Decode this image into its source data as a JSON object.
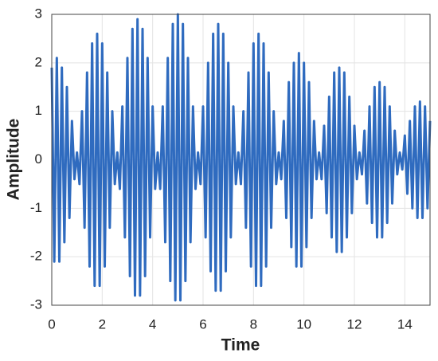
{
  "chart_data": {
    "type": "line",
    "xlabel": "Time",
    "ylabel": "Amplitude",
    "xlim": [
      0,
      15
    ],
    "ylim": [
      -3,
      3
    ],
    "xticks": [
      0,
      2,
      4,
      6,
      8,
      10,
      12,
      14
    ],
    "yticks": [
      -3,
      -2,
      -1,
      0,
      1,
      2,
      3
    ],
    "grid": true,
    "x": [
      0,
      0.1,
      0.2,
      0.3,
      0.4,
      0.5,
      0.6,
      0.7,
      0.8,
      0.9,
      1,
      1.1,
      1.2,
      1.3,
      1.4,
      1.5,
      1.6,
      1.7,
      1.8,
      1.9,
      2,
      2.1,
      2.2,
      2.3,
      2.4,
      2.5,
      2.6,
      2.7,
      2.8,
      2.9,
      3,
      3.1,
      3.2,
      3.3,
      3.4,
      3.5,
      3.6,
      3.7,
      3.8,
      3.9,
      4,
      4.1,
      4.2,
      4.3,
      4.4,
      4.5,
      4.6,
      4.7,
      4.8,
      4.9,
      5,
      5.1,
      5.2,
      5.3,
      5.4,
      5.5,
      5.6,
      5.7,
      5.8,
      5.9,
      6,
      6.1,
      6.2,
      6.3,
      6.4,
      6.5,
      6.6,
      6.7,
      6.8,
      6.9,
      7,
      7.1,
      7.2,
      7.3,
      7.4,
      7.5,
      7.6,
      7.7,
      7.8,
      7.9,
      8,
      8.1,
      8.2,
      8.3,
      8.4,
      8.5,
      8.6,
      8.7,
      8.8,
      8.9,
      9,
      9.1,
      9.2,
      9.3,
      9.4,
      9.5,
      9.6,
      9.7,
      9.8,
      9.9,
      10,
      10.1,
      10.2,
      10.3,
      10.4,
      10.5,
      10.6,
      10.7,
      10.8,
      10.9,
      11,
      11.1,
      11.2,
      11.3,
      11.4,
      11.5,
      11.6,
      11.7,
      11.8,
      11.9,
      12,
      12.1,
      12.2,
      12.3,
      12.4,
      12.5,
      12.6,
      12.7,
      12.8,
      12.9,
      13,
      13.1,
      13.2,
      13.3,
      13.4,
      13.5,
      13.6,
      13.7,
      13.8,
      13.9,
      14,
      14.1,
      14.2,
      14.3,
      14.4,
      14.5,
      14.6,
      14.7,
      14.8,
      14.9,
      15
    ],
    "series": [
      {
        "color": "#2f6bbf",
        "values": [
          1.9,
          -2.1,
          2.1,
          -2.1,
          1.9,
          -1.7,
          1.5,
          -1.2,
          0.8,
          -0.4,
          0.15,
          -0.5,
          1.0,
          -1.4,
          1.8,
          -2.2,
          2.4,
          -2.6,
          2.6,
          -2.6,
          2.4,
          -2.2,
          1.8,
          -1.4,
          1.0,
          -0.5,
          0.15,
          -0.6,
          1.1,
          -1.6,
          2.1,
          -2.4,
          2.7,
          -2.8,
          2.9,
          -2.8,
          2.7,
          -2.4,
          2.1,
          -1.6,
          1.1,
          -0.6,
          0.15,
          -0.6,
          1.1,
          -1.7,
          2.1,
          -2.5,
          2.8,
          -2.9,
          3.0,
          -2.9,
          2.8,
          -2.5,
          2.1,
          -1.7,
          1.1,
          -0.6,
          0.15,
          -0.5,
          1.1,
          -1.6,
          2.0,
          -2.3,
          2.6,
          -2.7,
          2.8,
          -2.7,
          2.6,
          -2.3,
          2.0,
          -1.6,
          1.1,
          -0.5,
          0.15,
          -0.5,
          1.0,
          -1.4,
          1.8,
          -2.2,
          2.4,
          -2.6,
          2.6,
          -2.6,
          2.4,
          -2.2,
          1.8,
          -1.4,
          1.0,
          -0.5,
          0.15,
          -0.4,
          0.8,
          -1.2,
          1.6,
          -1.8,
          2.0,
          -2.2,
          2.2,
          -2.2,
          2.0,
          -1.8,
          1.6,
          -1.2,
          0.8,
          -0.4,
          0.15,
          -0.4,
          0.7,
          -1.1,
          1.3,
          -1.6,
          1.8,
          -1.9,
          1.9,
          -1.9,
          1.8,
          -1.6,
          1.3,
          -1.1,
          0.7,
          -0.4,
          0.15,
          -0.3,
          0.6,
          -0.9,
          1.1,
          -1.3,
          1.5,
          -1.6,
          1.6,
          -1.6,
          1.5,
          -1.3,
          1.1,
          -0.9,
          0.6,
          -0.3,
          0.15,
          -0.2,
          0.5,
          -0.7,
          0.8,
          -1.0,
          1.1,
          -1.2,
          1.2,
          -1.2,
          1.1,
          -1.0,
          0.8
        ]
      }
    ]
  }
}
